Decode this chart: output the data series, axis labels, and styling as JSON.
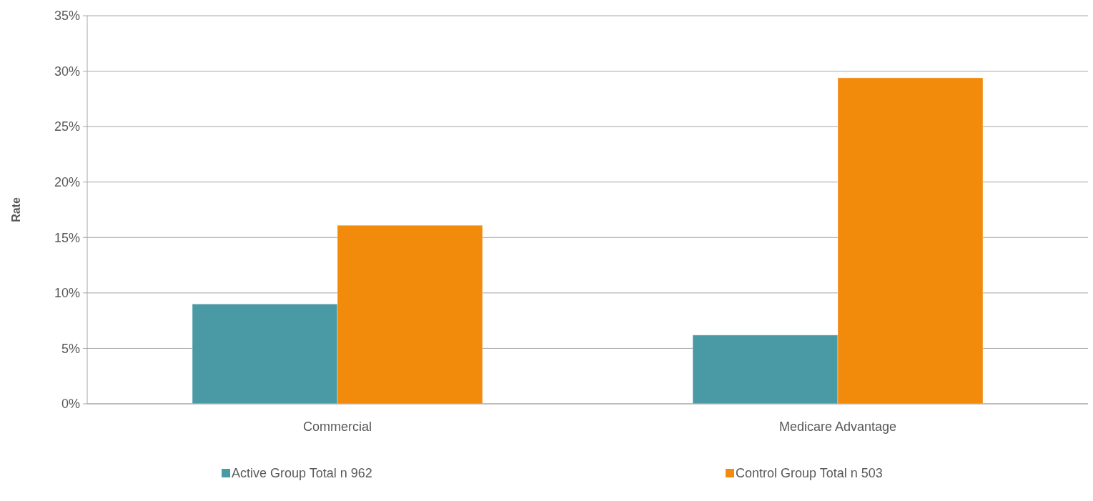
{
  "chart_data": {
    "type": "bar",
    "ylabel": "Rate",
    "categories": [
      "Commercial",
      "Medicare Advantage"
    ],
    "series": [
      {
        "name": "Active Group Total n 962",
        "color": "#4a9aa5",
        "values": [
          9.0,
          6.2
        ]
      },
      {
        "name": "Control Group Total n 503",
        "color": "#f28a0c",
        "values": [
          16.1,
          29.4
        ]
      }
    ],
    "ylim": [
      0,
      35
    ],
    "yticks": [
      {
        "value": 0,
        "label": "0%"
      },
      {
        "value": 5,
        "label": "5%"
      },
      {
        "value": 10,
        "label": "10%"
      },
      {
        "value": 15,
        "label": "15%"
      },
      {
        "value": 20,
        "label": "20%"
      },
      {
        "value": 25,
        "label": "25%"
      },
      {
        "value": 30,
        "label": "30%"
      },
      {
        "value": 35,
        "label": "35%"
      }
    ],
    "grid": "y",
    "legend": "bottom"
  }
}
